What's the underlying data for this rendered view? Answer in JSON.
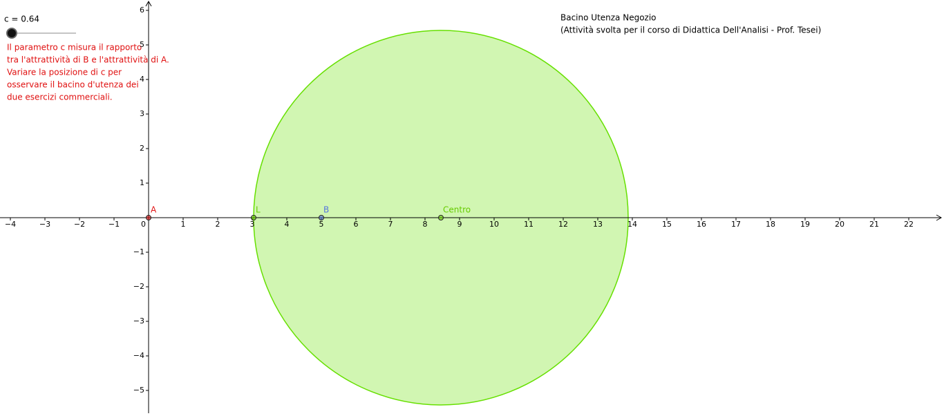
{
  "slider": {
    "label": "c = 0.64"
  },
  "note": [
    "Il parametro c misura il rapporto",
    "tra l'attrattività di B e l'attrattività di A.",
    "Variare la posizione di c per",
    "osservare il bacino d'utenza dei",
    "due esercizi commerciali."
  ],
  "header": [
    "Bacino Utenza Negozio",
    "(Attività svolta per il corso di Didattica Dell'Analisi - Prof. Tesei)"
  ],
  "axes": {
    "origin_label": "0",
    "xticks": [
      {
        "value": -4,
        "label": "−4"
      },
      {
        "value": -3,
        "label": "−3"
      },
      {
        "value": -2,
        "label": "−2"
      },
      {
        "value": -1,
        "label": "−1"
      },
      1,
      2,
      3,
      4,
      5,
      6,
      7,
      8,
      9,
      10,
      11,
      12,
      13,
      14,
      15,
      16,
      17,
      18,
      19,
      20,
      21,
      22
    ],
    "yticks": [
      {
        "value": -5,
        "label": "−5"
      },
      {
        "value": -4,
        "label": "−4"
      },
      {
        "value": -3,
        "label": "−3"
      },
      {
        "value": -2,
        "label": "−2"
      },
      {
        "value": -1,
        "label": "−1"
      },
      1,
      2,
      3,
      4,
      5,
      6
    ]
  },
  "circle": {
    "cx": 8.46,
    "cy": 0,
    "r": 5.42,
    "color": "#66e000"
  },
  "points": [
    {
      "label": "A",
      "x": 0,
      "y": 0,
      "color": "#e01010"
    },
    {
      "label": "L",
      "x": 3.04,
      "y": 0,
      "color": "#66cc00"
    },
    {
      "label": "B",
      "x": 5,
      "y": 0,
      "color": "#5577dd"
    },
    {
      "label": "Centro",
      "x": 8.46,
      "y": 0,
      "color": "#66cc00"
    }
  ]
}
